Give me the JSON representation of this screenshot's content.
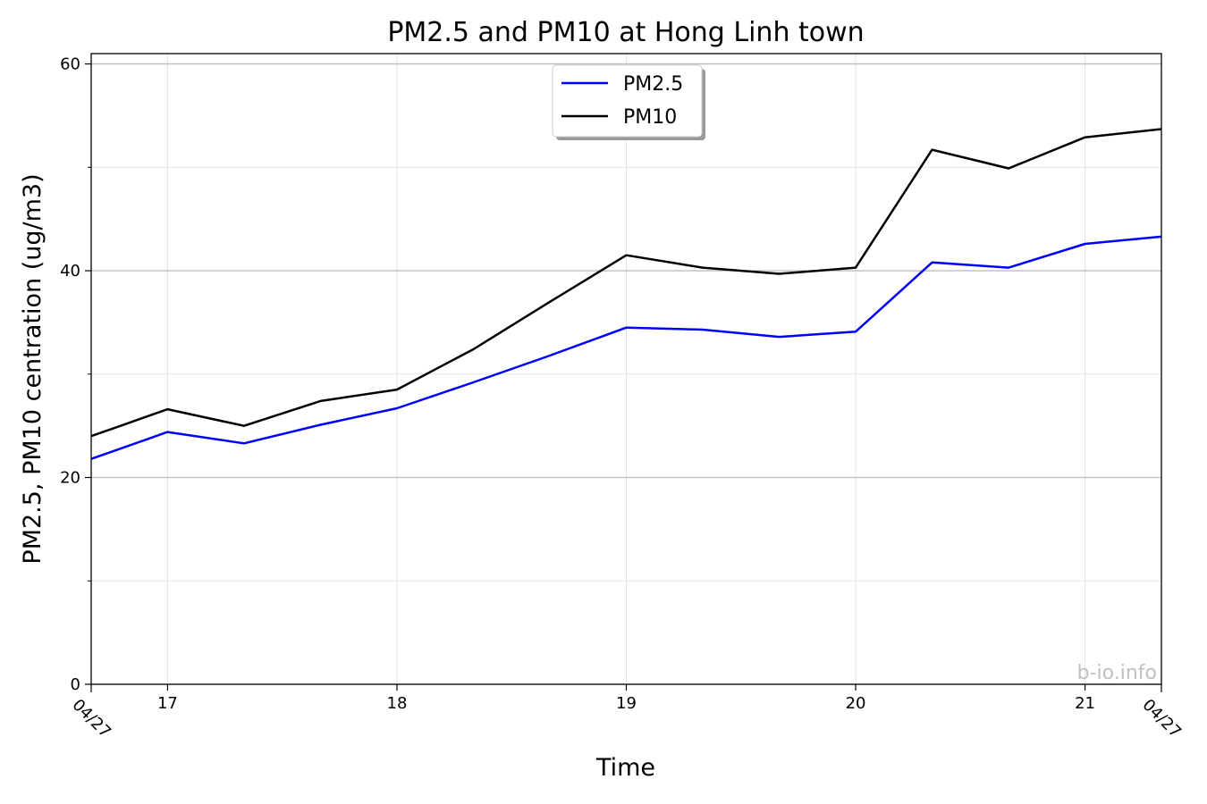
{
  "chart_data": {
    "type": "line",
    "title": "PM2.5 and PM10 at Hong Linh town",
    "xlabel": "Time",
    "ylabel": "PM2.5, PM10 centration (ug/m3)",
    "x_unit": "day of month (April)",
    "xlim": [
      16.667,
      21.333
    ],
    "ylim": [
      0,
      61
    ],
    "x_major_ticks": [
      {
        "x": 17,
        "label": "17"
      },
      {
        "x": 18,
        "label": "18"
      },
      {
        "x": 19,
        "label": "19"
      },
      {
        "x": 20,
        "label": "20"
      },
      {
        "x": 21,
        "label": "21"
      }
    ],
    "x_edge_labels": [
      "04/27",
      "04/27"
    ],
    "y_major_ticks": [
      0,
      20,
      40,
      60
    ],
    "y_minor_ticks": [
      10,
      30,
      50
    ],
    "grid": true,
    "legend_placement": "upper-center",
    "watermark": "b-io.info",
    "x": [
      16.667,
      17.0,
      17.333,
      17.667,
      18.0,
      18.333,
      18.667,
      19.0,
      19.333,
      19.667,
      20.0,
      20.333,
      20.667,
      21.0,
      21.333
    ],
    "series": [
      {
        "name": "PM2.5",
        "color": "#0000ff",
        "values": [
          21.8,
          24.4,
          23.3,
          25.1,
          26.7,
          29.2,
          31.8,
          34.5,
          34.3,
          33.6,
          34.1,
          40.8,
          40.3,
          42.6,
          43.3
        ]
      },
      {
        "name": "PM10",
        "color": "#000000",
        "values": [
          24.0,
          26.6,
          25.0,
          27.4,
          28.5,
          32.4,
          37.0,
          41.5,
          40.3,
          39.7,
          40.3,
          51.7,
          49.9,
          52.9,
          53.7
        ]
      }
    ]
  }
}
